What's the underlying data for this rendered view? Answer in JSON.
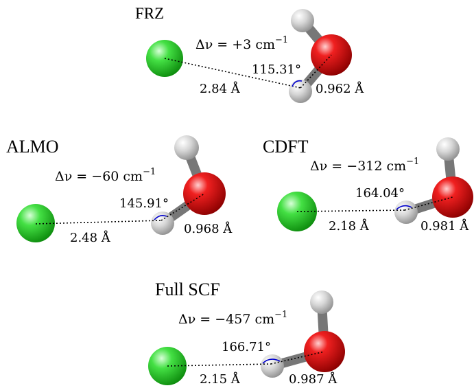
{
  "panels": [
    {
      "title": "FRZ",
      "shift": "Δν = +3 cm",
      "shift_exp": "−1",
      "angle": "115.31°",
      "distance": "2.84 Å",
      "bond": "0.962 Å"
    },
    {
      "title": "ALMO",
      "shift": "Δν = −60 cm",
      "shift_exp": "−1",
      "angle": "145.91°",
      "distance": "2.48 Å",
      "bond": "0.968 Å"
    },
    {
      "title": "CDFT",
      "shift": "Δν = −312 cm",
      "shift_exp": "−1",
      "angle": "164.04°",
      "distance": "2.18 Å",
      "bond": "0.981 Å"
    },
    {
      "title": "Full SCF",
      "shift": "Δν = −457 cm",
      "shift_exp": "−1",
      "angle": "166.71°",
      "distance": "2.15 Å",
      "bond": "0.987 Å"
    }
  ],
  "colors": {
    "chlorine": "#22cc22",
    "oxygen": "#e01010",
    "hydrogen": "#c8c8c8",
    "bond": "#808080",
    "angle_arc": "#0000cc",
    "dotted_line": "#000000"
  }
}
